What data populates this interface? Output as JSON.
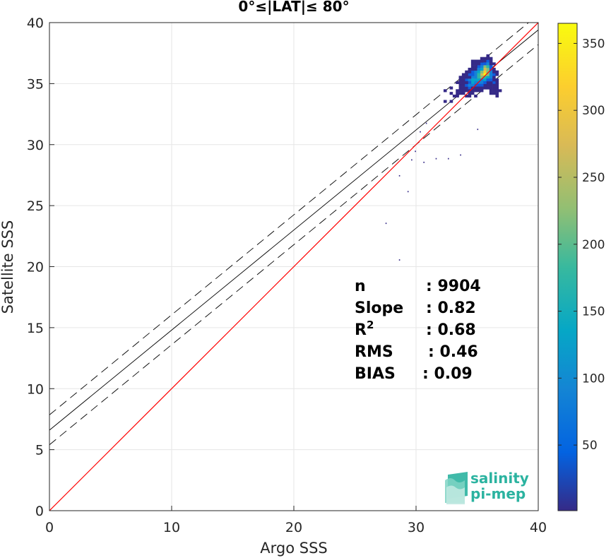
{
  "chart_data": {
    "type": "scatter",
    "title": "0°≤|LAT|≤ 80°",
    "xlabel": "Argo SSS",
    "ylabel": "Satellite SSS",
    "xlim": [
      0,
      40
    ],
    "ylim": [
      0,
      40
    ],
    "xticks": [
      "0",
      "10",
      "20",
      "30",
      "40"
    ],
    "yticks": [
      "0",
      "5",
      "10",
      "15",
      "20",
      "25",
      "30",
      "35",
      "40"
    ],
    "grid": true,
    "reference_line": {
      "slope": 1,
      "intercept": 0,
      "color": "#ff0000"
    },
    "fit_line": {
      "slope": 0.82,
      "intercept": 6.6,
      "color": "#000000"
    },
    "fit_bounds": {
      "upper_intercept": 7.85,
      "lower_intercept": 5.4,
      "slope": 0.82
    },
    "density_center": [
      35.9,
      36.1
    ],
    "outliers": [
      [
        28.6,
        20.6
      ],
      [
        27.5,
        23.6
      ],
      [
        29.3,
        26.2
      ],
      [
        28.6,
        27.5
      ],
      [
        29.6,
        28.8
      ],
      [
        30.6,
        28.6
      ],
      [
        31.6,
        28.9
      ],
      [
        32.6,
        28.9
      ],
      [
        33.6,
        29.2
      ],
      [
        35.0,
        31.3
      ],
      [
        29.9,
        29.5
      ],
      [
        30.3,
        31.1
      ],
      [
        30.8,
        31.8
      ]
    ],
    "colorbar": {
      "ticks": [
        "50",
        "100",
        "150",
        "200",
        "250",
        "300",
        "350"
      ],
      "tick_values": [
        50,
        100,
        150,
        200,
        250,
        300,
        350
      ],
      "min": 1,
      "max": 365,
      "colormap": "parula"
    },
    "stats": [
      {
        "label": "n",
        "value": ": 9904"
      },
      {
        "label": "Slope",
        "value": ": 0.82"
      },
      {
        "label": "R",
        "sup": "2",
        "value": ": 0.68"
      },
      {
        "label": "RMS",
        "value": ": 0.46"
      },
      {
        "label": "BIAS",
        "value": ": 0.09"
      }
    ]
  },
  "logo": {
    "line1": "salinity",
    "line2": "pi-mep",
    "color": "#2bb3a0"
  }
}
